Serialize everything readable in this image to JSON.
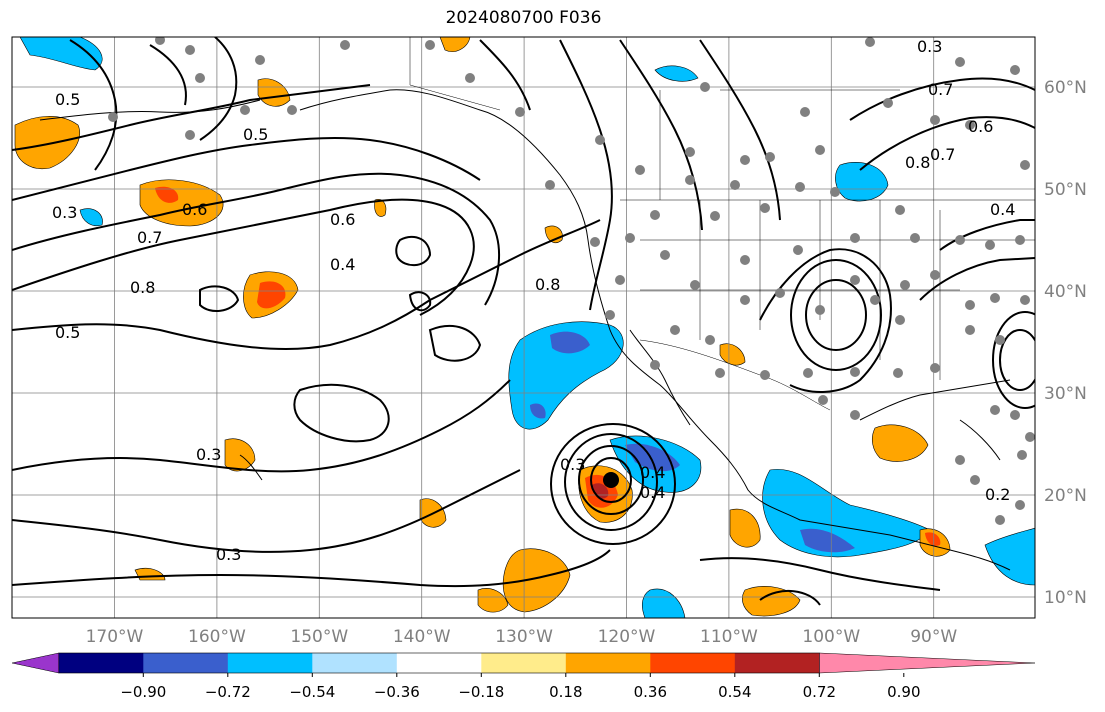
{
  "title": "2024080700 F036",
  "lon_labels": [
    "170°W",
    "160°W",
    "150°W",
    "140°W",
    "130°W",
    "120°W",
    "110°W",
    "100°W",
    "90°W"
  ],
  "lat_labels": [
    "60°N",
    "50°N",
    "40°N",
    "30°N",
    "20°N",
    "10°N"
  ],
  "colorbar": {
    "ticks": [
      "−0.90",
      "−0.72",
      "−0.54",
      "−0.36",
      "−0.18",
      "0.18",
      "0.36",
      "0.54",
      "0.72",
      "0.90"
    ],
    "colors": [
      "#9a35cc",
      "#000080",
      "#3a5fcd",
      "#00bfff",
      "#b0e2ff",
      "#ffffff",
      "#ffec8b",
      "#ffa500",
      "#ff4500",
      "#b22222",
      "#ff88aa"
    ]
  },
  "contour_labels": [
    "0.3",
    "0.3",
    "0.3",
    "0.3",
    "0.4",
    "0.4",
    "0.4",
    "0.5",
    "0.5",
    "0.5",
    "0.6",
    "0.6",
    "0.6",
    "0.7",
    "0.7",
    "0.7",
    "0.8",
    "0.8",
    "0.8",
    "0.2",
    "0.3",
    "0.4"
  ],
  "shading_colors": {
    "light_blue": "#00bfff",
    "mid_blue": "#3a5fcd",
    "orange": "#ffa500",
    "red": "#ff4500",
    "dark_red": "#b22222"
  },
  "marker_colors": {
    "stations": "#808080",
    "storm_center": "#000000"
  }
}
